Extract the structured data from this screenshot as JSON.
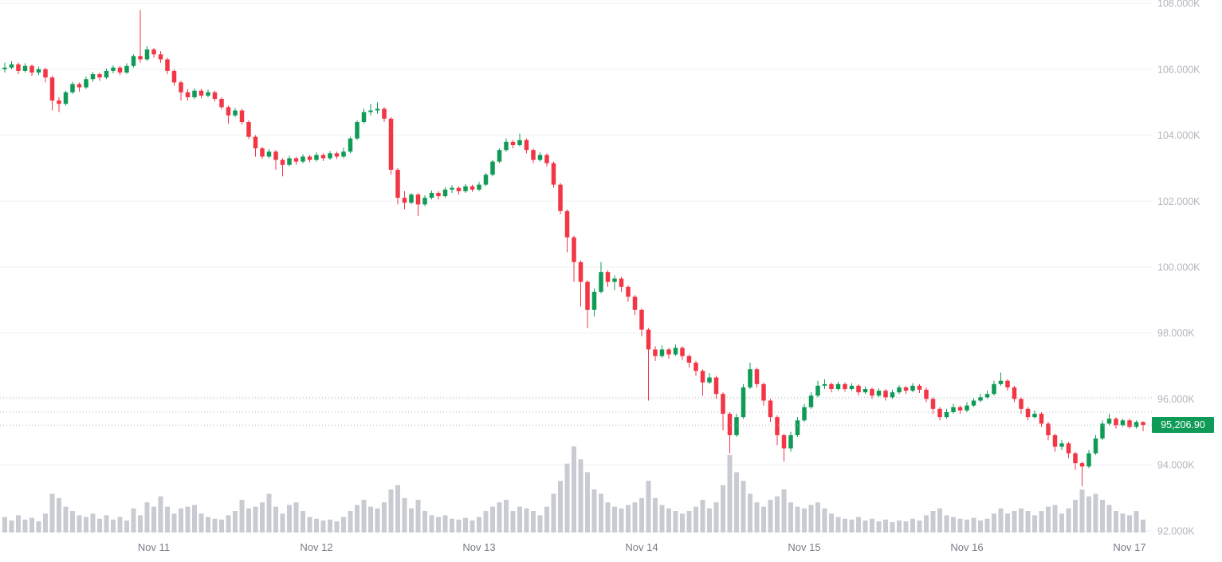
{
  "chart_data": {
    "type": "candlestick",
    "title": "",
    "last_price_k": 95.2069,
    "last_price_label": "95,206.90",
    "dashed_levels": [
      96.05,
      95.6
    ],
    "y_axis": {
      "unit": "K",
      "range": [
        91.9,
        108.1
      ],
      "tick_values": [
        108,
        106,
        104,
        102,
        100,
        98,
        96,
        94,
        92
      ],
      "tick_labels": [
        "108.000K",
        "106.000K",
        "104.000K",
        "102.000K",
        "100.000K",
        "98.000K",
        "96.000K",
        "94.000K",
        "92.000K"
      ]
    },
    "x_axis": {
      "tick_labels": [
        "Nov 11",
        "Nov 12",
        "Nov 13",
        "Nov 14",
        "Nov 15",
        "Nov 16",
        "Nov 17"
      ],
      "tick_indices": [
        22,
        46,
        70,
        94,
        118,
        142,
        166
      ]
    },
    "colors": {
      "up": "#0f9b57",
      "down": "#f23645",
      "volume": "#c8cbd1",
      "grid": "#eef0f2",
      "axis_text": "#b2b5be",
      "date_text": "#787b86",
      "badge_bg": "#0f9b57",
      "badge_text": "#ffffff",
      "price_line": "#b0b3ba",
      "dashed_line": "#b8bbc2",
      "background": "#ffffff"
    },
    "candles": [
      [
        106.0,
        106.2,
        105.9,
        106.05
      ],
      [
        106.05,
        106.25,
        106.0,
        106.15
      ],
      [
        106.15,
        106.2,
        105.85,
        105.95
      ],
      [
        105.95,
        106.18,
        105.9,
        106.1
      ],
      [
        106.1,
        106.15,
        105.8,
        105.9
      ],
      [
        105.9,
        106.08,
        105.82,
        106.0
      ],
      [
        106.0,
        106.05,
        105.6,
        105.75
      ],
      [
        105.75,
        105.8,
        104.75,
        105.05
      ],
      [
        105.05,
        105.15,
        104.7,
        104.95
      ],
      [
        104.95,
        105.35,
        104.9,
        105.3
      ],
      [
        105.3,
        105.62,
        105.25,
        105.55
      ],
      [
        105.55,
        105.6,
        105.32,
        105.45
      ],
      [
        105.45,
        105.78,
        105.4,
        105.7
      ],
      [
        105.7,
        105.92,
        105.62,
        105.85
      ],
      [
        105.85,
        105.9,
        105.65,
        105.75
      ],
      [
        105.75,
        106.02,
        105.7,
        105.95
      ],
      [
        105.95,
        106.12,
        105.88,
        106.05
      ],
      [
        106.05,
        106.1,
        105.82,
        105.9
      ],
      [
        105.9,
        106.18,
        105.85,
        106.1
      ],
      [
        106.1,
        106.45,
        106.05,
        106.4
      ],
      [
        106.4,
        107.8,
        106.2,
        106.3
      ],
      [
        106.3,
        106.7,
        106.25,
        106.6
      ],
      [
        106.6,
        106.65,
        106.35,
        106.45
      ],
      [
        106.45,
        106.55,
        106.2,
        106.3
      ],
      [
        106.3,
        106.35,
        105.85,
        105.95
      ],
      [
        105.95,
        106.0,
        105.5,
        105.6
      ],
      [
        105.6,
        105.65,
        105.05,
        105.3
      ],
      [
        105.3,
        105.4,
        105.05,
        105.15
      ],
      [
        105.15,
        105.42,
        105.1,
        105.35
      ],
      [
        105.35,
        105.4,
        105.12,
        105.2
      ],
      [
        105.2,
        105.38,
        105.15,
        105.3
      ],
      [
        105.3,
        105.35,
        105.02,
        105.1
      ],
      [
        105.1,
        105.15,
        104.78,
        104.85
      ],
      [
        104.85,
        104.9,
        104.35,
        104.6
      ],
      [
        104.6,
        104.82,
        104.55,
        104.75
      ],
      [
        104.75,
        104.8,
        104.32,
        104.4
      ],
      [
        104.4,
        104.45,
        103.88,
        103.95
      ],
      [
        103.95,
        104.0,
        103.35,
        103.6
      ],
      [
        103.6,
        103.65,
        103.28,
        103.35
      ],
      [
        103.35,
        103.58,
        103.3,
        103.5
      ],
      [
        103.5,
        103.55,
        102.95,
        103.25
      ],
      [
        103.25,
        103.3,
        102.75,
        103.1
      ],
      [
        103.1,
        103.38,
        103.05,
        103.3
      ],
      [
        103.3,
        103.35,
        103.1,
        103.2
      ],
      [
        103.2,
        103.42,
        103.15,
        103.35
      ],
      [
        103.35,
        103.4,
        103.18,
        103.25
      ],
      [
        103.25,
        103.48,
        103.2,
        103.4
      ],
      [
        103.4,
        103.45,
        103.22,
        103.3
      ],
      [
        103.3,
        103.52,
        103.25,
        103.45
      ],
      [
        103.45,
        103.5,
        103.28,
        103.35
      ],
      [
        103.35,
        103.62,
        103.3,
        103.5
      ],
      [
        103.5,
        103.95,
        103.45,
        103.9
      ],
      [
        103.9,
        104.45,
        103.85,
        104.4
      ],
      [
        104.4,
        104.8,
        104.35,
        104.7
      ],
      [
        104.7,
        104.95,
        104.6,
        104.75
      ],
      [
        104.75,
        105.0,
        104.65,
        104.8
      ],
      [
        104.8,
        104.85,
        104.4,
        104.5
      ],
      [
        104.5,
        104.55,
        102.8,
        102.95
      ],
      [
        102.95,
        103.0,
        101.9,
        102.1
      ],
      [
        102.1,
        102.3,
        101.75,
        101.95
      ],
      [
        101.95,
        102.25,
        101.9,
        102.2
      ],
      [
        102.2,
        102.25,
        101.55,
        101.9
      ],
      [
        101.9,
        102.18,
        101.85,
        102.1
      ],
      [
        102.1,
        102.32,
        102.05,
        102.25
      ],
      [
        102.25,
        102.3,
        102.05,
        102.15
      ],
      [
        102.15,
        102.42,
        102.1,
        102.35
      ],
      [
        102.35,
        102.48,
        102.25,
        102.4
      ],
      [
        102.4,
        102.45,
        102.2,
        102.3
      ],
      [
        102.3,
        102.52,
        102.25,
        102.45
      ],
      [
        102.45,
        102.5,
        102.28,
        102.35
      ],
      [
        102.35,
        102.58,
        102.3,
        102.5
      ],
      [
        102.5,
        102.85,
        102.45,
        102.8
      ],
      [
        102.8,
        103.25,
        102.75,
        103.2
      ],
      [
        103.2,
        103.6,
        103.15,
        103.55
      ],
      [
        103.55,
        103.9,
        103.5,
        103.8
      ],
      [
        103.8,
        103.85,
        103.6,
        103.7
      ],
      [
        103.7,
        104.05,
        103.65,
        103.85
      ],
      [
        103.85,
        103.9,
        103.45,
        103.55
      ],
      [
        103.55,
        103.6,
        103.15,
        103.25
      ],
      [
        103.25,
        103.48,
        103.2,
        103.4
      ],
      [
        103.4,
        103.45,
        103.05,
        103.15
      ],
      [
        103.15,
        103.2,
        102.4,
        102.5
      ],
      [
        102.5,
        102.55,
        101.6,
        101.7
      ],
      [
        101.7,
        101.75,
        100.45,
        100.9
      ],
      [
        100.9,
        100.95,
        99.55,
        100.15
      ],
      [
        100.15,
        100.2,
        98.8,
        99.55
      ],
      [
        99.55,
        99.6,
        98.15,
        98.7
      ],
      [
        98.7,
        99.35,
        98.5,
        99.25
      ],
      [
        99.25,
        100.15,
        99.2,
        99.85
      ],
      [
        99.85,
        99.9,
        99.4,
        99.55
      ],
      [
        99.55,
        99.75,
        99.3,
        99.65
      ],
      [
        99.65,
        99.7,
        99.25,
        99.4
      ],
      [
        99.4,
        99.45,
        98.95,
        99.1
      ],
      [
        99.1,
        99.15,
        98.55,
        98.7
      ],
      [
        98.7,
        98.75,
        97.9,
        98.1
      ],
      [
        98.1,
        98.15,
        95.95,
        97.5
      ],
      [
        97.5,
        97.6,
        97.15,
        97.3
      ],
      [
        97.3,
        97.62,
        97.25,
        97.5
      ],
      [
        97.5,
        97.55,
        97.22,
        97.35
      ],
      [
        97.35,
        97.65,
        97.3,
        97.55
      ],
      [
        97.55,
        97.6,
        97.18,
        97.3
      ],
      [
        97.3,
        97.35,
        96.95,
        97.1
      ],
      [
        97.1,
        97.15,
        96.7,
        96.85
      ],
      [
        96.85,
        96.9,
        96.1,
        96.5
      ],
      [
        96.5,
        96.78,
        96.45,
        96.65
      ],
      [
        96.65,
        96.7,
        96.0,
        96.15
      ],
      [
        96.15,
        96.2,
        95.05,
        95.55
      ],
      [
        95.55,
        95.6,
        94.35,
        94.9
      ],
      [
        94.9,
        95.55,
        94.85,
        95.45
      ],
      [
        95.45,
        96.45,
        95.4,
        96.35
      ],
      [
        96.35,
        97.1,
        96.3,
        96.9
      ],
      [
        96.9,
        96.95,
        96.35,
        96.45
      ],
      [
        96.45,
        96.5,
        95.8,
        95.95
      ],
      [
        95.95,
        96.0,
        95.3,
        95.45
      ],
      [
        95.45,
        95.5,
        94.6,
        94.9
      ],
      [
        94.9,
        94.95,
        94.1,
        94.5
      ],
      [
        94.5,
        95.0,
        94.4,
        94.9
      ],
      [
        94.9,
        95.45,
        94.85,
        95.35
      ],
      [
        95.35,
        95.85,
        95.3,
        95.75
      ],
      [
        95.75,
        96.2,
        95.7,
        96.1
      ],
      [
        96.1,
        96.55,
        96.05,
        96.4
      ],
      [
        96.4,
        96.6,
        96.3,
        96.45
      ],
      [
        96.45,
        96.5,
        96.2,
        96.3
      ],
      [
        96.3,
        96.52,
        96.25,
        96.45
      ],
      [
        96.45,
        96.5,
        96.22,
        96.3
      ],
      [
        96.3,
        96.48,
        96.25,
        96.4
      ],
      [
        96.4,
        96.45,
        96.1,
        96.2
      ],
      [
        96.2,
        96.38,
        96.15,
        96.3
      ],
      [
        96.3,
        96.35,
        96.0,
        96.1
      ],
      [
        96.1,
        96.32,
        96.05,
        96.25
      ],
      [
        96.25,
        96.3,
        95.95,
        96.05
      ],
      [
        96.05,
        96.28,
        96.0,
        96.2
      ],
      [
        96.2,
        96.42,
        96.15,
        96.35
      ],
      [
        96.35,
        96.4,
        96.15,
        96.25
      ],
      [
        96.25,
        96.48,
        96.2,
        96.4
      ],
      [
        96.4,
        96.45,
        96.18,
        96.28
      ],
      [
        96.28,
        96.35,
        95.9,
        96.0
      ],
      [
        96.0,
        96.05,
        95.55,
        95.7
      ],
      [
        95.7,
        95.75,
        95.35,
        95.45
      ],
      [
        95.45,
        95.7,
        95.4,
        95.6
      ],
      [
        95.6,
        95.85,
        95.55,
        95.75
      ],
      [
        95.75,
        95.8,
        95.55,
        95.65
      ],
      [
        95.65,
        95.9,
        95.6,
        95.8
      ],
      [
        95.8,
        96.02,
        95.75,
        95.95
      ],
      [
        95.95,
        96.15,
        95.9,
        96.05
      ],
      [
        96.05,
        96.25,
        96.0,
        96.15
      ],
      [
        96.15,
        96.55,
        96.1,
        96.45
      ],
      [
        96.45,
        96.8,
        96.4,
        96.55
      ],
      [
        96.55,
        96.6,
        96.25,
        96.35
      ],
      [
        96.35,
        96.4,
        95.9,
        96.0
      ],
      [
        96.0,
        96.05,
        95.55,
        95.7
      ],
      [
        95.7,
        95.75,
        95.35,
        95.45
      ],
      [
        95.45,
        95.65,
        95.4,
        95.55
      ],
      [
        95.55,
        95.6,
        95.15,
        95.25
      ],
      [
        95.25,
        95.3,
        94.75,
        94.9
      ],
      [
        94.9,
        94.95,
        94.4,
        94.55
      ],
      [
        94.55,
        94.75,
        94.45,
        94.65
      ],
      [
        94.65,
        94.7,
        94.2,
        94.35
      ],
      [
        94.35,
        94.4,
        93.85,
        94.05
      ],
      [
        94.05,
        94.1,
        93.35,
        93.95
      ],
      [
        93.95,
        94.45,
        93.9,
        94.35
      ],
      [
        94.35,
        94.9,
        94.3,
        94.8
      ],
      [
        94.8,
        95.35,
        94.75,
        95.25
      ],
      [
        95.25,
        95.55,
        95.2,
        95.4
      ],
      [
        95.4,
        95.45,
        95.1,
        95.2
      ],
      [
        95.2,
        95.4,
        95.15,
        95.35
      ],
      [
        95.35,
        95.4,
        95.1,
        95.15
      ],
      [
        95.15,
        95.35,
        95.1,
        95.3
      ],
      [
        95.3,
        95.32,
        95.02,
        95.21
      ]
    ],
    "volume": [
      0.18,
      0.14,
      0.2,
      0.15,
      0.17,
      0.13,
      0.22,
      0.45,
      0.4,
      0.3,
      0.25,
      0.2,
      0.18,
      0.22,
      0.16,
      0.2,
      0.15,
      0.18,
      0.14,
      0.28,
      0.2,
      0.35,
      0.3,
      0.42,
      0.3,
      0.22,
      0.28,
      0.3,
      0.32,
      0.22,
      0.18,
      0.16,
      0.15,
      0.2,
      0.25,
      0.38,
      0.28,
      0.3,
      0.35,
      0.45,
      0.3,
      0.22,
      0.32,
      0.35,
      0.25,
      0.18,
      0.16,
      0.14,
      0.15,
      0.13,
      0.18,
      0.25,
      0.32,
      0.38,
      0.3,
      0.28,
      0.35,
      0.5,
      0.55,
      0.4,
      0.28,
      0.38,
      0.25,
      0.2,
      0.18,
      0.2,
      0.16,
      0.15,
      0.17,
      0.14,
      0.18,
      0.25,
      0.3,
      0.35,
      0.38,
      0.25,
      0.3,
      0.28,
      0.25,
      0.2,
      0.3,
      0.45,
      0.6,
      0.8,
      1.0,
      0.85,
      0.7,
      0.5,
      0.45,
      0.35,
      0.3,
      0.28,
      0.32,
      0.35,
      0.4,
      0.6,
      0.4,
      0.32,
      0.28,
      0.25,
      0.22,
      0.25,
      0.3,
      0.38,
      0.28,
      0.35,
      0.55,
      0.9,
      0.7,
      0.6,
      0.45,
      0.35,
      0.3,
      0.38,
      0.42,
      0.5,
      0.35,
      0.3,
      0.28,
      0.32,
      0.35,
      0.28,
      0.22,
      0.18,
      0.16,
      0.15,
      0.18,
      0.14,
      0.16,
      0.13,
      0.15,
      0.12,
      0.14,
      0.13,
      0.16,
      0.14,
      0.2,
      0.25,
      0.28,
      0.2,
      0.18,
      0.16,
      0.15,
      0.17,
      0.14,
      0.16,
      0.22,
      0.28,
      0.22,
      0.25,
      0.28,
      0.25,
      0.2,
      0.25,
      0.3,
      0.32,
      0.22,
      0.28,
      0.38,
      0.5,
      0.42,
      0.45,
      0.38,
      0.32,
      0.25,
      0.22,
      0.2,
      0.25,
      0.15
    ]
  }
}
